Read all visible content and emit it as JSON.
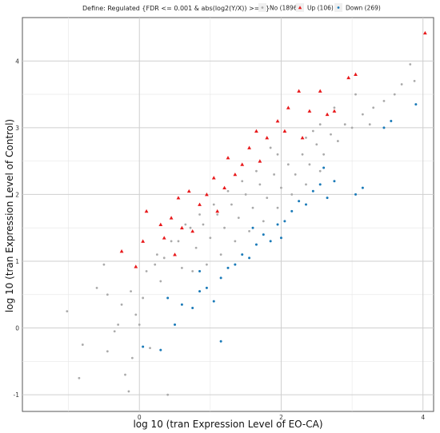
{
  "chart_data": {
    "type": "scatter",
    "title": "",
    "xlabel": "log 10 (tran Expression Level of EO-CA)",
    "ylabel": "log 10 (tran Expression Level of Control)",
    "xlim": [
      -1.65,
      4.15
    ],
    "ylim": [
      -1.25,
      4.65
    ],
    "x_ticks": [
      0,
      2,
      4
    ],
    "y_ticks": [
      -1,
      0,
      1,
      2,
      3,
      4
    ],
    "grid": true,
    "legend": {
      "title": "Define: Regulated {FDR <= 0.001 & abs(log2(Y/X)) >= 1}",
      "placement": "top",
      "entries": [
        {
          "name": "No (1896)",
          "color": "#aaaaaa",
          "marker": "circle"
        },
        {
          "name": "Up (106)",
          "color": "#e8191b",
          "marker": "triangle"
        },
        {
          "name": "Down (269)",
          "color": "#1a7ab8",
          "marker": "circle"
        }
      ]
    },
    "series": [
      {
        "name": "No (1896)",
        "color": "#aaaaaa",
        "points": [
          [
            -0.85,
            -0.75
          ],
          [
            -0.8,
            -0.25
          ],
          [
            -0.45,
            -0.35
          ],
          [
            -0.35,
            -0.05
          ],
          [
            -0.2,
            -0.7
          ],
          [
            -0.15,
            -0.95
          ],
          [
            -0.25,
            0.35
          ],
          [
            -0.3,
            0.05
          ],
          [
            -0.12,
            0.55
          ],
          [
            -0.05,
            0.2
          ],
          [
            0.05,
            0.45
          ],
          [
            0.1,
            0.85
          ],
          [
            -0.45,
            0.5
          ],
          [
            0.15,
            -0.3
          ],
          [
            0.22,
            0.95
          ],
          [
            0.35,
            1.05
          ],
          [
            0.3,
            0.7
          ],
          [
            0.4,
            -1.0
          ],
          [
            0.55,
            1.3
          ],
          [
            0.6,
            0.9
          ],
          [
            0.72,
            1.5
          ],
          [
            0.8,
            1.2
          ],
          [
            0.9,
            1.55
          ],
          [
            1.0,
            1.35
          ],
          [
            1.1,
            1.7
          ],
          [
            1.2,
            1.5
          ],
          [
            1.3,
            1.85
          ],
          [
            1.4,
            1.65
          ],
          [
            1.5,
            2.0
          ],
          [
            1.6,
            1.8
          ],
          [
            1.7,
            2.15
          ],
          [
            1.8,
            1.95
          ],
          [
            1.9,
            2.3
          ],
          [
            2.0,
            2.1
          ],
          [
            2.1,
            2.45
          ],
          [
            2.2,
            2.3
          ],
          [
            2.3,
            2.6
          ],
          [
            2.4,
            2.45
          ],
          [
            2.5,
            2.75
          ],
          [
            2.6,
            2.6
          ],
          [
            2.7,
            2.9
          ],
          [
            2.8,
            2.8
          ],
          [
            2.9,
            3.05
          ],
          [
            3.0,
            3.0
          ],
          [
            3.15,
            3.2
          ],
          [
            3.3,
            3.3
          ],
          [
            3.45,
            3.4
          ],
          [
            3.6,
            3.5
          ],
          [
            3.7,
            3.65
          ],
          [
            3.82,
            3.95
          ],
          [
            3.88,
            3.7
          ],
          [
            2.55,
            3.05
          ],
          [
            2.35,
            2.85
          ],
          [
            1.95,
            2.6
          ],
          [
            1.65,
            2.35
          ],
          [
            1.45,
            2.2
          ],
          [
            1.25,
            2.05
          ],
          [
            1.05,
            1.85
          ],
          [
            0.85,
            1.7
          ],
          [
            0.65,
            1.55
          ],
          [
            0.45,
            1.3
          ],
          [
            0.25,
            1.1
          ],
          [
            1.15,
            1.1
          ],
          [
            1.35,
            1.3
          ],
          [
            1.55,
            1.45
          ],
          [
            1.75,
            1.6
          ],
          [
            1.95,
            1.8
          ],
          [
            2.15,
            2.0
          ],
          [
            2.35,
            2.15
          ],
          [
            2.55,
            2.35
          ],
          [
            0.95,
            0.95
          ],
          [
            0.75,
            0.85
          ],
          [
            -1.02,
            0.25
          ],
          [
            -0.6,
            0.6
          ],
          [
            -0.5,
            0.95
          ],
          [
            0.0,
            0.05
          ],
          [
            -0.1,
            -0.45
          ],
          [
            3.05,
            3.5
          ],
          [
            2.75,
            3.3
          ],
          [
            3.25,
            3.05
          ],
          [
            1.85,
            2.7
          ],
          [
            2.45,
            2.95
          ]
        ]
      },
      {
        "name": "Up (106)",
        "color": "#e8191b",
        "points": [
          [
            -0.25,
            1.15
          ],
          [
            -0.05,
            0.92
          ],
          [
            0.1,
            1.75
          ],
          [
            0.3,
            1.55
          ],
          [
            0.45,
            1.65
          ],
          [
            0.55,
            1.95
          ],
          [
            0.7,
            2.05
          ],
          [
            0.85,
            1.85
          ],
          [
            0.95,
            2.0
          ],
          [
            1.05,
            2.25
          ],
          [
            1.2,
            2.1
          ],
          [
            1.25,
            2.55
          ],
          [
            1.45,
            2.45
          ],
          [
            1.55,
            2.7
          ],
          [
            1.65,
            2.95
          ],
          [
            1.8,
            2.85
          ],
          [
            1.95,
            3.1
          ],
          [
            2.1,
            3.3
          ],
          [
            2.25,
            3.55
          ],
          [
            2.4,
            3.25
          ],
          [
            2.55,
            3.55
          ],
          [
            2.65,
            3.2
          ],
          [
            2.95,
            3.75
          ],
          [
            3.05,
            3.8
          ],
          [
            0.5,
            1.1
          ],
          [
            0.35,
            1.35
          ],
          [
            0.75,
            1.45
          ],
          [
            1.35,
            2.3
          ],
          [
            2.05,
            2.95
          ],
          [
            4.03,
            4.42
          ],
          [
            0.05,
            1.3
          ],
          [
            0.6,
            1.5
          ],
          [
            1.1,
            1.75
          ],
          [
            1.7,
            2.5
          ],
          [
            2.3,
            2.85
          ],
          [
            2.75,
            3.25
          ]
        ]
      },
      {
        "name": "Down (269)",
        "color": "#1a7ab8",
        "points": [
          [
            0.05,
            -0.28
          ],
          [
            0.3,
            -0.33
          ],
          [
            0.5,
            0.05
          ],
          [
            0.6,
            0.35
          ],
          [
            0.75,
            0.3
          ],
          [
            0.85,
            0.55
          ],
          [
            0.95,
            0.6
          ],
          [
            1.05,
            0.4
          ],
          [
            1.15,
            0.75
          ],
          [
            1.25,
            0.9
          ],
          [
            1.35,
            0.95
          ],
          [
            1.45,
            1.1
          ],
          [
            1.55,
            1.05
          ],
          [
            1.65,
            1.25
          ],
          [
            1.75,
            1.4
          ],
          [
            1.85,
            1.3
          ],
          [
            1.95,
            1.55
          ],
          [
            2.05,
            1.6
          ],
          [
            2.15,
            1.75
          ],
          [
            2.25,
            1.9
          ],
          [
            2.35,
            1.85
          ],
          [
            2.45,
            2.05
          ],
          [
            2.55,
            2.15
          ],
          [
            2.65,
            1.95
          ],
          [
            2.75,
            2.2
          ],
          [
            3.05,
            2.0
          ],
          [
            3.15,
            2.1
          ],
          [
            3.45,
            3.0
          ],
          [
            3.55,
            3.1
          ],
          [
            3.9,
            3.35
          ],
          [
            2.6,
            2.4
          ],
          [
            1.15,
            -0.2
          ],
          [
            0.4,
            0.45
          ],
          [
            0.85,
            0.85
          ],
          [
            1.6,
            1.5
          ],
          [
            2.0,
            1.35
          ]
        ]
      }
    ]
  }
}
